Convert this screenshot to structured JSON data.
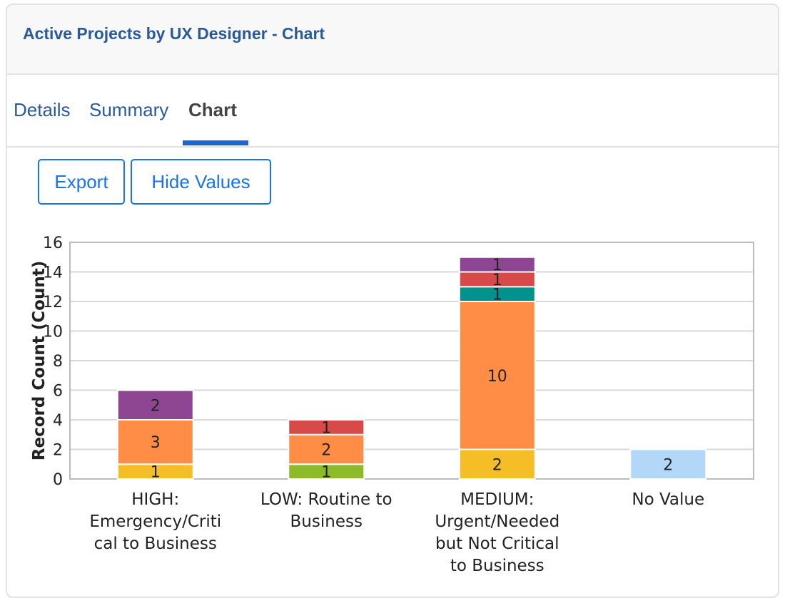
{
  "title": "Active Projects by UX Designer - Chart",
  "tabs": [
    {
      "label": "Details"
    },
    {
      "label": "Summary"
    },
    {
      "label": "Chart"
    }
  ],
  "buttons": {
    "export": "Export",
    "hide_values": "Hide Values"
  },
  "chart_data": {
    "type": "bar",
    "stacked": true,
    "categories": [
      [
        "HIGH:",
        "Emergency/Criti",
        "cal to Business"
      ],
      [
        "LOW: Routine to",
        "Business"
      ],
      [
        "MEDIUM:",
        "Urgent/Needed",
        "but Not Critical",
        "to Business"
      ],
      [
        "No Value"
      ]
    ],
    "ylabel": "Record Count (Count)",
    "xlabel": "",
    "ylim": [
      0,
      16
    ],
    "yticks": [
      0,
      2,
      4,
      6,
      8,
      10,
      12,
      14,
      16
    ],
    "grid": true,
    "legend": "none",
    "series": [
      {
        "color": "#f5be26",
        "values": [
          1,
          0,
          2,
          0
        ]
      },
      {
        "color": "#8cba2a",
        "values": [
          0,
          1,
          0,
          0
        ]
      },
      {
        "color": "#ff8d45",
        "values": [
          3,
          2,
          10,
          0
        ]
      },
      {
        "color": "#00928b",
        "values": [
          0,
          0,
          1,
          0
        ]
      },
      {
        "color": "#d84a4a",
        "values": [
          0,
          1,
          1,
          0
        ]
      },
      {
        "color": "#8e4592",
        "values": [
          2,
          0,
          1,
          0
        ]
      },
      {
        "color": "#b3d8f7",
        "values": [
          0,
          0,
          0,
          2
        ]
      }
    ]
  }
}
